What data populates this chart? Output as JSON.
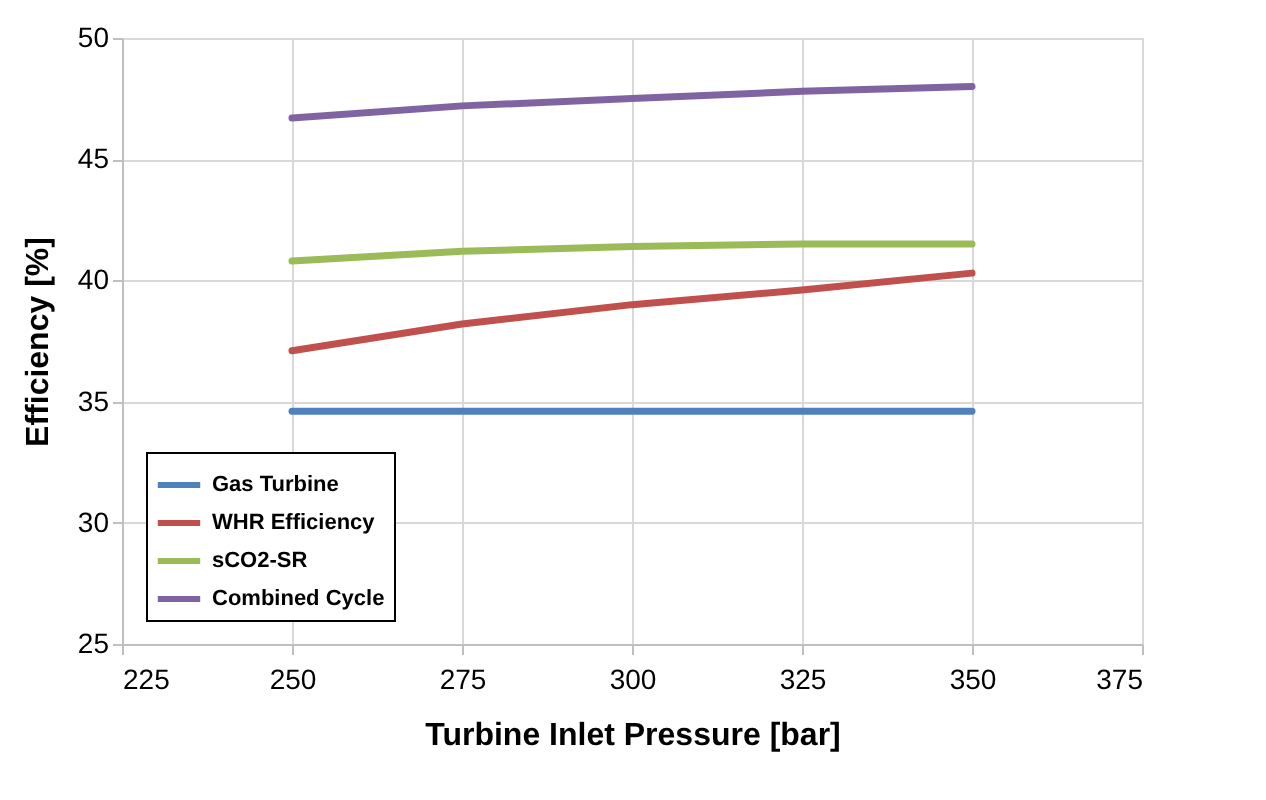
{
  "chart_data": {
    "type": "line",
    "xlabel": "Turbine Inlet Pressure [bar]",
    "ylabel": "Efficiency [%]",
    "x": [
      250,
      275,
      300,
      325,
      350
    ],
    "series": [
      {
        "name": "Gas Turbine",
        "color": "#4f81bd",
        "values": [
          34.6,
          34.6,
          34.6,
          34.6,
          34.6
        ]
      },
      {
        "name": "WHR Efficiency",
        "color": "#c0504d",
        "values": [
          37.1,
          38.2,
          39.0,
          39.6,
          40.3
        ]
      },
      {
        "name": "sCO2-SR",
        "color": "#9bbb59",
        "values": [
          40.8,
          41.2,
          41.4,
          41.5,
          41.5
        ]
      },
      {
        "name": "Combined Cycle",
        "color": "#8064a2",
        "values": [
          46.7,
          47.2,
          47.5,
          47.8,
          48.0
        ]
      }
    ],
    "xlim": [
      225,
      375
    ],
    "xticks": [
      225,
      250,
      275,
      300,
      325,
      350,
      375
    ],
    "ylim": [
      25,
      50
    ],
    "yticks": [
      25,
      30,
      35,
      40,
      45,
      50
    ],
    "grid": true,
    "legend": "bottom left",
    "marker": "none",
    "line_style": "solid"
  }
}
